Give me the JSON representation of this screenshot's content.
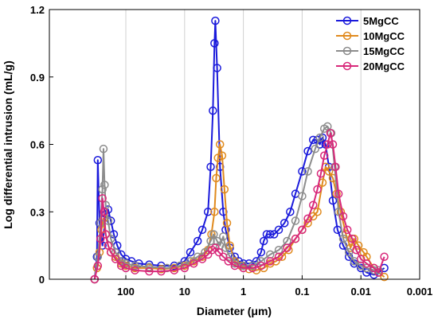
{
  "chart_data": {
    "type": "line",
    "title": "",
    "xlabel": "Diameter (μm)",
    "ylabel": "Log differential intrusion (mL/g)",
    "x_scale": "log",
    "x_reversed": true,
    "xlim": [
      2000,
      0.001
    ],
    "ylim": [
      0,
      1.2
    ],
    "x_ticks": [
      {
        "value": 100,
        "label": "100"
      },
      {
        "value": 10,
        "label": "10"
      },
      {
        "value": 1,
        "label": "1"
      },
      {
        "value": 0.1,
        "label": "0.1"
      },
      {
        "value": 0.01,
        "label": "0.01"
      },
      {
        "value": 0.001,
        "label": "0.001"
      }
    ],
    "y_ticks": [
      {
        "value": 0,
        "label": "0"
      },
      {
        "value": 0.3,
        "label": "0.3"
      },
      {
        "value": 0.6,
        "label": "0.6"
      },
      {
        "value": 0.9,
        "label": "0.9"
      },
      {
        "value": 1.2,
        "label": "1.2"
      }
    ],
    "grid": "vertical",
    "legend_position": "top-right",
    "series": [
      {
        "name": "5MgCC",
        "color": "#1a1adb",
        "points": [
          [
            340,
            0
          ],
          [
            310,
            0.1
          ],
          [
            300,
            0.53
          ],
          [
            280,
            0.25
          ],
          [
            250,
            0.15
          ],
          [
            220,
            0.29
          ],
          [
            200,
            0.31
          ],
          [
            180,
            0.26
          ],
          [
            160,
            0.2
          ],
          [
            140,
            0.15
          ],
          [
            120,
            0.11
          ],
          [
            100,
            0.09
          ],
          [
            80,
            0.08
          ],
          [
            60,
            0.07
          ],
          [
            40,
            0.065
          ],
          [
            25,
            0.06
          ],
          [
            15,
            0.06
          ],
          [
            10,
            0.08
          ],
          [
            8,
            0.12
          ],
          [
            6,
            0.17
          ],
          [
            5,
            0.22
          ],
          [
            4,
            0.3
          ],
          [
            3.6,
            0.5
          ],
          [
            3.3,
            0.75
          ],
          [
            3.1,
            1.05
          ],
          [
            3.0,
            1.15
          ],
          [
            2.8,
            0.94
          ],
          [
            2.5,
            0.5
          ],
          [
            2.2,
            0.3
          ],
          [
            2,
            0.22
          ],
          [
            1.7,
            0.14
          ],
          [
            1.4,
            0.1
          ],
          [
            1.2,
            0.08
          ],
          [
            1,
            0.07
          ],
          [
            0.8,
            0.07
          ],
          [
            0.6,
            0.08
          ],
          [
            0.5,
            0.12
          ],
          [
            0.45,
            0.17
          ],
          [
            0.4,
            0.2
          ],
          [
            0.35,
            0.2
          ],
          [
            0.3,
            0.2
          ],
          [
            0.25,
            0.22
          ],
          [
            0.2,
            0.25
          ],
          [
            0.16,
            0.3
          ],
          [
            0.13,
            0.38
          ],
          [
            0.1,
            0.48
          ],
          [
            0.08,
            0.57
          ],
          [
            0.065,
            0.62
          ],
          [
            0.055,
            0.62
          ],
          [
            0.05,
            0.6
          ],
          [
            0.045,
            0.63
          ],
          [
            0.04,
            0.6
          ],
          [
            0.035,
            0.5
          ],
          [
            0.03,
            0.35
          ],
          [
            0.025,
            0.22
          ],
          [
            0.02,
            0.15
          ],
          [
            0.016,
            0.1
          ],
          [
            0.013,
            0.07
          ],
          [
            0.01,
            0.05
          ],
          [
            0.008,
            0.03
          ],
          [
            0.006,
            0.02
          ],
          [
            0.005,
            0.03
          ],
          [
            0.004,
            0.05
          ]
        ]
      },
      {
        "name": "10MgCC",
        "color": "#e08a1e",
        "points": [
          [
            340,
            0
          ],
          [
            310,
            0.05
          ],
          [
            280,
            0.12
          ],
          [
            260,
            0.22
          ],
          [
            240,
            0.27
          ],
          [
            220,
            0.2
          ],
          [
            200,
            0.15
          ],
          [
            180,
            0.12
          ],
          [
            150,
            0.1
          ],
          [
            120,
            0.07
          ],
          [
            100,
            0.06
          ],
          [
            70,
            0.05
          ],
          [
            40,
            0.05
          ],
          [
            25,
            0.045
          ],
          [
            15,
            0.05
          ],
          [
            10,
            0.06
          ],
          [
            7,
            0.08
          ],
          [
            5,
            0.1
          ],
          [
            4,
            0.13
          ],
          [
            3.5,
            0.2
          ],
          [
            3.1,
            0.3
          ],
          [
            2.9,
            0.45
          ],
          [
            2.7,
            0.54
          ],
          [
            2.5,
            0.6
          ],
          [
            2.3,
            0.55
          ],
          [
            2.1,
            0.4
          ],
          [
            1.9,
            0.25
          ],
          [
            1.7,
            0.15
          ],
          [
            1.4,
            0.08
          ],
          [
            1.1,
            0.06
          ],
          [
            0.8,
            0.045
          ],
          [
            0.6,
            0.04
          ],
          [
            0.45,
            0.05
          ],
          [
            0.35,
            0.07
          ],
          [
            0.28,
            0.08
          ],
          [
            0.22,
            0.1
          ],
          [
            0.17,
            0.13
          ],
          [
            0.13,
            0.18
          ],
          [
            0.1,
            0.22
          ],
          [
            0.08,
            0.25
          ],
          [
            0.065,
            0.28
          ],
          [
            0.055,
            0.3
          ],
          [
            0.045,
            0.43
          ],
          [
            0.04,
            0.5
          ],
          [
            0.035,
            0.48
          ],
          [
            0.03,
            0.45
          ],
          [
            0.026,
            0.38
          ],
          [
            0.022,
            0.3
          ],
          [
            0.018,
            0.2
          ],
          [
            0.015,
            0.14
          ],
          [
            0.013,
            0.18
          ],
          [
            0.011,
            0.15
          ],
          [
            0.009,
            0.12
          ],
          [
            0.008,
            0.1
          ],
          [
            0.006,
            0.05
          ],
          [
            0.005,
            0.03
          ],
          [
            0.004,
            0.01
          ]
        ]
      },
      {
        "name": "15MgCC",
        "color": "#8c8c8c",
        "points": [
          [
            340,
            0
          ],
          [
            300,
            0.1
          ],
          [
            270,
            0.25
          ],
          [
            250,
            0.4
          ],
          [
            240,
            0.58
          ],
          [
            230,
            0.42
          ],
          [
            220,
            0.33
          ],
          [
            200,
            0.26
          ],
          [
            180,
            0.18
          ],
          [
            150,
            0.12
          ],
          [
            120,
            0.08
          ],
          [
            100,
            0.07
          ],
          [
            70,
            0.06
          ],
          [
            40,
            0.055
          ],
          [
            20,
            0.05
          ],
          [
            12,
            0.06
          ],
          [
            8,
            0.08
          ],
          [
            6,
            0.1
          ],
          [
            4.5,
            0.12
          ],
          [
            3.6,
            0.17
          ],
          [
            3.2,
            0.2
          ],
          [
            2.8,
            0.17
          ],
          [
            2.5,
            0.15
          ],
          [
            2.2,
            0.19
          ],
          [
            2,
            0.14
          ],
          [
            1.7,
            0.1
          ],
          [
            1.4,
            0.07
          ],
          [
            1,
            0.06
          ],
          [
            0.7,
            0.06
          ],
          [
            0.5,
            0.08
          ],
          [
            0.35,
            0.11
          ],
          [
            0.25,
            0.13
          ],
          [
            0.18,
            0.17
          ],
          [
            0.13,
            0.26
          ],
          [
            0.1,
            0.37
          ],
          [
            0.08,
            0.48
          ],
          [
            0.06,
            0.58
          ],
          [
            0.05,
            0.63
          ],
          [
            0.042,
            0.67
          ],
          [
            0.037,
            0.68
          ],
          [
            0.032,
            0.65
          ],
          [
            0.028,
            0.5
          ],
          [
            0.024,
            0.3
          ],
          [
            0.02,
            0.18
          ],
          [
            0.016,
            0.12
          ],
          [
            0.013,
            0.08
          ],
          [
            0.01,
            0.06
          ],
          [
            0.008,
            0.05
          ],
          [
            0.006,
            0.04
          ],
          [
            0.005,
            0.04
          ]
        ]
      },
      {
        "name": "20MgCC",
        "color": "#d8287a",
        "points": [
          [
            340,
            0
          ],
          [
            300,
            0.06
          ],
          [
            270,
            0.18
          ],
          [
            250,
            0.36
          ],
          [
            235,
            0.3
          ],
          [
            220,
            0.2
          ],
          [
            200,
            0.15
          ],
          [
            180,
            0.12
          ],
          [
            150,
            0.09
          ],
          [
            120,
            0.06
          ],
          [
            100,
            0.05
          ],
          [
            70,
            0.04
          ],
          [
            40,
            0.035
          ],
          [
            25,
            0.035
          ],
          [
            15,
            0.04
          ],
          [
            10,
            0.05
          ],
          [
            7,
            0.07
          ],
          [
            5,
            0.09
          ],
          [
            4,
            0.11
          ],
          [
            3.4,
            0.13
          ],
          [
            3,
            0.14
          ],
          [
            2.6,
            0.12
          ],
          [
            2.2,
            0.1
          ],
          [
            1.8,
            0.08
          ],
          [
            1.4,
            0.06
          ],
          [
            1,
            0.05
          ],
          [
            0.7,
            0.05
          ],
          [
            0.5,
            0.06
          ],
          [
            0.35,
            0.08
          ],
          [
            0.25,
            0.1
          ],
          [
            0.18,
            0.14
          ],
          [
            0.13,
            0.18
          ],
          [
            0.1,
            0.22
          ],
          [
            0.08,
            0.27
          ],
          [
            0.065,
            0.33
          ],
          [
            0.055,
            0.4
          ],
          [
            0.048,
            0.47
          ],
          [
            0.042,
            0.55
          ],
          [
            0.037,
            0.6
          ],
          [
            0.033,
            0.65
          ],
          [
            0.03,
            0.6
          ],
          [
            0.027,
            0.5
          ],
          [
            0.024,
            0.38
          ],
          [
            0.02,
            0.28
          ],
          [
            0.017,
            0.22
          ],
          [
            0.014,
            0.18
          ],
          [
            0.012,
            0.13
          ],
          [
            0.01,
            0.09
          ],
          [
            0.008,
            0.07
          ],
          [
            0.006,
            0.05
          ],
          [
            0.005,
            0.03
          ],
          [
            0.004,
            0.1
          ]
        ]
      }
    ]
  }
}
